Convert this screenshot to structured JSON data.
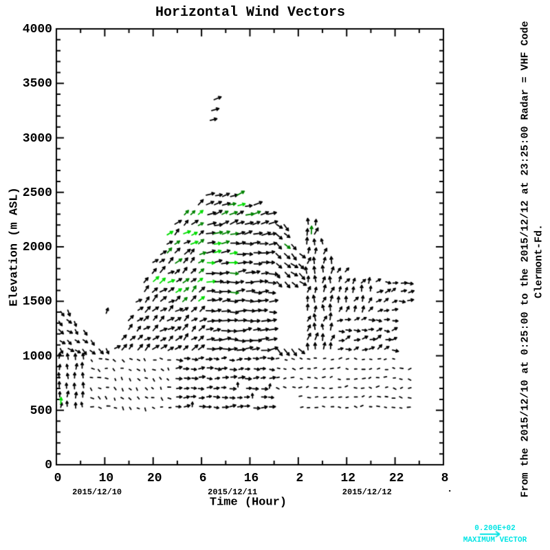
{
  "title": "Horizontal Wind Vectors",
  "axes": {
    "x": {
      "label": "Time (Hour)",
      "range_hours": [
        0,
        80
      ],
      "major_tick_interval_hours": 10,
      "minor_tick_interval_hours": 5,
      "major_ticks_hours": [
        0,
        10,
        20,
        30,
        40,
        50,
        60,
        70,
        80
      ],
      "tick_labels": [
        "0",
        "10",
        "20",
        "6",
        "16",
        "2",
        "12",
        "22",
        "8"
      ],
      "date_labels": [
        {
          "text": "2015/12/10",
          "hour": 8.4
        },
        {
          "text": "2015/12/11",
          "hour": 36.4
        },
        {
          "text": "2015/12/12",
          "hour": 64.2
        }
      ]
    },
    "y": {
      "label": "Elevation (m ASL)",
      "range_m": [
        0,
        4000
      ],
      "major_tick_interval_m": 500,
      "minor_tick_interval_m": 100,
      "tick_labels": [
        "0",
        "500",
        "1000",
        "1500",
        "2000",
        "2500",
        "3000",
        "3500",
        "4000"
      ]
    }
  },
  "annotations": {
    "right_line1": "From the 2015/12/10 at  0:25:00 to the 2015/12/12 at 23:25:00 Radar = VHF Code",
    "right_line2": "Clermont-Fd.",
    "max_vector_value": "0.200E+02",
    "max_vector_label": "MAXIMUM VECTOR",
    "stray_dot": "."
  },
  "colors": {
    "background": "#FFFFFF",
    "axis": "#000000",
    "vector_black": "#000000",
    "vector_green_dark": "#008200",
    "vector_green_bright": "#00DC00",
    "legend_cyan": "#00E4E4"
  },
  "chart_data": {
    "type": "quiver",
    "title": "Horizontal Wind Vectors",
    "xlabel": "Time (Hour)",
    "ylabel": "Elevation (m ASL)",
    "x_range_hours": [
      0,
      80
    ],
    "y_range_m": [
      0,
      4000
    ],
    "dates": [
      "2015/12/10",
      "2015/12/11",
      "2015/12/12"
    ],
    "max_vector_ms": 20,
    "grid_dt_hours": 1.6,
    "grid_dz_m": 88,
    "grid_t_start": 0.7,
    "grid_z_start": 530,
    "grid_t_end": 74.2,
    "grid_z_end": 2600,
    "envelope_max_elevation_m": [
      [
        0,
        1460
      ],
      [
        3,
        1460
      ],
      [
        8,
        1160
      ],
      [
        9,
        1060
      ],
      [
        12,
        1060
      ],
      [
        13,
        1160
      ],
      [
        16,
        1500
      ],
      [
        18,
        1720
      ],
      [
        20,
        1930
      ],
      [
        23,
        2120
      ],
      [
        26,
        2330
      ],
      [
        29,
        2400
      ],
      [
        31,
        2460
      ],
      [
        32,
        2530
      ],
      [
        36,
        2530
      ],
      [
        38,
        2460
      ],
      [
        40,
        2430
      ],
      [
        43,
        2310
      ],
      [
        45,
        2290
      ],
      [
        47,
        2250
      ],
      [
        49,
        2060
      ],
      [
        51,
        1900
      ],
      [
        52,
        2260
      ],
      [
        54,
        2260
      ],
      [
        55,
        2100
      ],
      [
        57,
        1840
      ],
      [
        59,
        1780
      ],
      [
        62,
        1730
      ],
      [
        66,
        1730
      ],
      [
        68,
        1680
      ],
      [
        74,
        1680
      ]
    ],
    "holes": [
      {
        "t": [
          8.3,
          11.4
        ],
        "z": [
          1090,
          1600
        ]
      },
      {
        "t": [
          44.6,
          51.6
        ],
        "z": [
          1080,
          1630
        ]
      },
      {
        "t": [
          44.8,
          50.2
        ],
        "z": [
          470,
          670
        ]
      },
      {
        "t": [
          70.2,
          74.5
        ],
        "z": [
          940,
          1440
        ]
      }
    ],
    "green_zones": [
      {
        "t": [
          23.5,
          31
        ],
        "z": [
          1420,
          2420
        ],
        "p": 0.5
      },
      {
        "t": [
          31,
          37.5
        ],
        "z": [
          1500,
          2560
        ],
        "p": 0.28
      },
      {
        "t": [
          14.5,
          23.5
        ],
        "z": [
          1500,
          2150
        ],
        "p": 0.22
      },
      {
        "t": [
          37.5,
          41.5
        ],
        "z": [
          2150,
          2520
        ],
        "p": 0.3
      },
      {
        "t": [
          44,
          51
        ],
        "z": [
          1700,
          2320
        ],
        "p": 0.06
      }
    ],
    "direction_rules": {
      "bottom_band_max_z": 1000,
      "bottom_band": [
        {
          "t": [
            0,
            7
          ],
          "angle": [
            88,
            14
          ],
          "len": [
            6.5,
            2.0
          ]
        },
        {
          "t": [
            7,
            24
          ],
          "angle": [
            -35,
            40
          ],
          "len": [
            2.7,
            1.7
          ]
        },
        {
          "t": [
            24,
            45
          ],
          "angle": [
            2,
            13
          ],
          "len": [
            6.2,
            3.2
          ],
          "vertical_chance": 0.16
        },
        {
          "t": [
            45,
            75
          ],
          "angle": [
            0,
            28
          ],
          "len": [
            2.8,
            1.5
          ]
        }
      ],
      "upper": [
        {
          "t": [
            0,
            11.5
          ],
          "angle": [
            -48,
            22
          ],
          "len": [
            7.0,
            2.2
          ]
        },
        {
          "t": [
            11.5,
            30
          ],
          "angle": [
            38,
            20
          ],
          "len": [
            8.0,
            3.0
          ]
        },
        {
          "t": [
            30,
            44
          ],
          "angle": [
            6,
            12
          ],
          "len": [
            9.5,
            3.5
          ],
          "high_z": 2050,
          "high_angle": [
            17,
            14
          ]
        },
        {
          "t": [
            44,
            51.6
          ],
          "angle": [
            -42,
            13
          ],
          "len": [
            9.5,
            2.2
          ]
        },
        {
          "t": [
            51.6,
            58
          ],
          "angle": [
            82,
            26
          ],
          "len": [
            7.5,
            2.8
          ]
        },
        {
          "t": [
            58,
            66
          ],
          "angle": [
            14,
            26
          ],
          "len": [
            6.8,
            2.2
          ],
          "high_z": 1400,
          "high_angle": [
            66,
            28
          ]
        },
        {
          "t": [
            66,
            75
          ],
          "angle": [
            16,
            33
          ],
          "len": [
            6.8,
            2.2
          ]
        }
      ]
    },
    "spike_vectors": [
      {
        "t": 32.6,
        "z": 3350,
        "angle": 22,
        "len": 11
      },
      {
        "t": 32.1,
        "z": 3250,
        "angle": 16,
        "len": 11
      },
      {
        "t": 31.8,
        "z": 3160,
        "angle": 14,
        "len": 10
      }
    ],
    "special_vectors": [
      {
        "t": 0.9,
        "z": 560,
        "angle": 86,
        "len": 9,
        "color": "#00DC00"
      },
      {
        "t": 52.7,
        "z": 2120,
        "angle": 88,
        "len": 11,
        "color": "#008200"
      },
      {
        "t": 10.3,
        "z": 1390,
        "angle": 70,
        "len": 8,
        "color": "#000000"
      }
    ]
  }
}
